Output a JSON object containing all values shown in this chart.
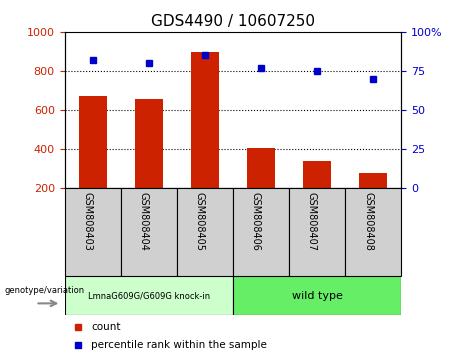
{
  "title": "GDS4490 / 10607250",
  "samples": [
    "GSM808403",
    "GSM808404",
    "GSM808405",
    "GSM808406",
    "GSM808407",
    "GSM808408"
  ],
  "counts": [
    670,
    655,
    895,
    405,
    335,
    275
  ],
  "percentiles": [
    82,
    80,
    85,
    77,
    75,
    70
  ],
  "bar_color": "#cc2200",
  "dot_color": "#0000cc",
  "ylim_left": [
    200,
    1000
  ],
  "ylim_right": [
    0,
    100
  ],
  "yticks_left": [
    200,
    400,
    600,
    800,
    1000
  ],
  "yticks_right": [
    0,
    25,
    50,
    75,
    100
  ],
  "ytick_right_labels": [
    "0",
    "25",
    "50",
    "75",
    "100%"
  ],
  "gridlines": [
    400,
    600,
    800
  ],
  "group1_label": "LmnaG609G/G609G knock-in",
  "group2_label": "wild type",
  "group1_color": "#ccffcc",
  "group2_color": "#66ee66",
  "genotype_label": "genotype/variation",
  "legend_count": "count",
  "legend_percentile": "percentile rank within the sample",
  "bar_color_legend": "#cc2200",
  "dot_color_legend": "#0000cc",
  "left_axis_color": "#cc2200",
  "right_axis_color": "#0000cc",
  "sample_box_color": "#d0d0d0"
}
